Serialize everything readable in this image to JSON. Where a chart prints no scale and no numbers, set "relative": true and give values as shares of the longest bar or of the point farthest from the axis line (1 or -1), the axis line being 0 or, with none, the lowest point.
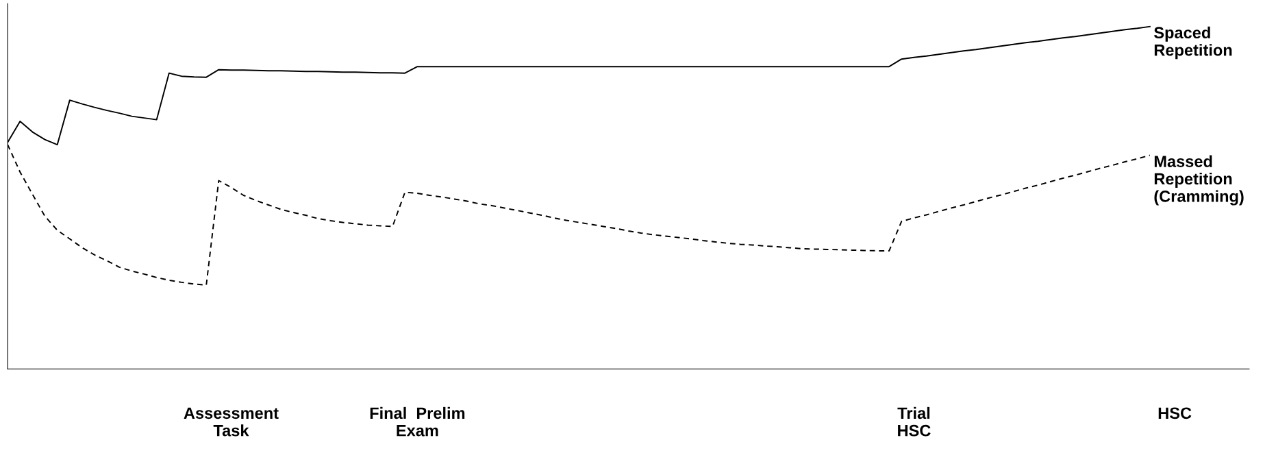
{
  "chart_data": {
    "type": "line",
    "relative": true,
    "categories": [
      null,
      null,
      null,
      null,
      null,
      null,
      null,
      null,
      null,
      null,
      null,
      null,
      null,
      null,
      null,
      null,
      null,
      null,
      "Assessment\nTask",
      null,
      null,
      null,
      null,
      null,
      null,
      null,
      null,
      null,
      null,
      null,
      null,
      null,
      null,
      "Final  Prelim\nExam",
      null,
      null,
      null,
      null,
      null,
      null,
      null,
      null,
      null,
      null,
      null,
      null,
      null,
      null,
      null,
      null,
      null,
      null,
      null,
      null,
      null,
      null,
      null,
      null,
      null,
      null,
      null,
      null,
      null,
      null,
      null,
      null,
      null,
      null,
      null,
      null,
      null,
      null,
      null,
      "Trial\nHSC",
      null,
      null,
      null,
      null,
      null,
      null,
      null,
      null,
      null,
      null,
      null,
      null,
      null,
      null,
      null,
      null,
      null,
      null,
      null,
      null,
      "HSC",
      null,
      null,
      null,
      null,
      null,
      null
    ],
    "grid": false,
    "legend": false,
    "marker": "none",
    "series": [
      {
        "name": "Spaced\nRepetition",
        "color": "#000000",
        "line_style": "solid",
        "values": [
          0.662,
          0.723,
          0.692,
          0.67,
          0.655,
          0.785,
          0.774,
          0.764,
          0.755,
          0.747,
          0.738,
          0.733,
          0.728,
          0.864,
          0.855,
          0.853,
          0.852,
          0.874,
          0.873,
          0.873,
          0.872,
          0.871,
          0.871,
          0.87,
          0.869,
          0.869,
          0.868,
          0.867,
          0.867,
          0.866,
          0.865,
          0.865,
          0.864,
          0.883,
          0.883,
          0.883,
          0.883,
          0.883,
          0.883,
          0.883,
          0.883,
          0.883,
          0.883,
          0.883,
          0.883,
          0.883,
          0.883,
          0.883,
          0.883,
          0.883,
          0.883,
          0.883,
          0.883,
          0.883,
          0.883,
          0.883,
          0.883,
          0.883,
          0.883,
          0.883,
          0.883,
          0.883,
          0.883,
          0.883,
          0.883,
          0.883,
          0.883,
          0.883,
          0.883,
          0.883,
          0.883,
          0.883,
          0.905,
          0.91,
          0.914,
          0.919,
          0.924,
          0.929,
          0.933,
          0.938,
          0.943,
          0.948,
          0.953,
          0.957,
          0.962,
          0.967,
          0.971,
          0.976,
          0.981,
          0.986,
          0.991,
          0.995,
          1.0,
          null,
          null,
          null,
          null,
          null,
          null,
          null,
          null
        ]
      },
      {
        "name": "Massed\nRepetition\n(Cramming)",
        "color": "#000000",
        "line_style": "dashed",
        "values": [
          0.655,
          0.575,
          0.51,
          0.446,
          0.405,
          0.38,
          0.354,
          0.333,
          0.316,
          0.297,
          0.286,
          0.277,
          0.267,
          0.259,
          0.253,
          0.248,
          0.245,
          0.55,
          0.53,
          0.507,
          0.492,
          0.479,
          0.466,
          0.457,
          0.449,
          0.439,
          0.433,
          0.428,
          0.424,
          0.42,
          0.418,
          0.416,
          0.516,
          0.513,
          0.507,
          0.502,
          0.496,
          0.49,
          0.482,
          0.477,
          0.47,
          0.463,
          0.456,
          0.449,
          0.441,
          0.434,
          0.428,
          0.422,
          0.416,
          0.41,
          0.403,
          0.397,
          0.392,
          0.388,
          0.384,
          0.38,
          0.375,
          0.371,
          0.367,
          0.364,
          0.362,
          0.359,
          0.357,
          0.354,
          0.351,
          0.35,
          0.349,
          0.348,
          0.347,
          0.346,
          0.345,
          0.345,
          0.431,
          0.441,
          0.45,
          0.46,
          0.47,
          0.479,
          0.489,
          0.499,
          0.508,
          0.518,
          0.528,
          0.537,
          0.547,
          0.557,
          0.566,
          0.576,
          0.586,
          0.595,
          0.605,
          0.614,
          0.624,
          null,
          null,
          null,
          null,
          null,
          null,
          null,
          null
        ]
      }
    ]
  }
}
